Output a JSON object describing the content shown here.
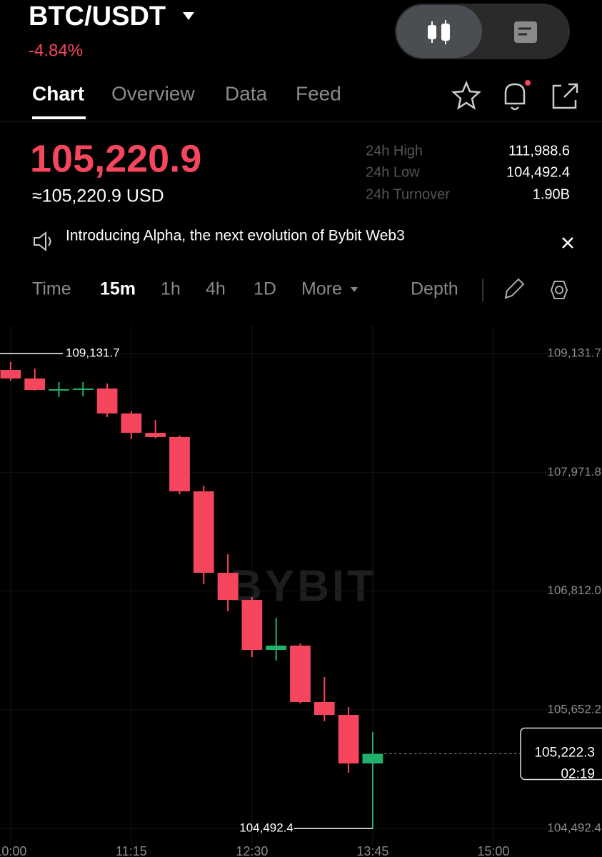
{
  "header": {
    "pair": "BTC/USDT",
    "change": "-4.84%"
  },
  "tabs": [
    "Chart",
    "Overview",
    "Data",
    "Feed"
  ],
  "ticker": {
    "price": "105,220.9",
    "usd": "≈105,220.9 USD"
  },
  "stats": [
    {
      "label": "24h High",
      "value": "111,988.6"
    },
    {
      "label": "24h Low",
      "value": "104,492.4"
    },
    {
      "label": "24h Turnover",
      "value": "1.90B"
    }
  ],
  "banner": "Introducing Alpha, the next evolution of Bybit Web3",
  "intervals": [
    "Time",
    "15m",
    "1h",
    "4h",
    "1D",
    "More",
    "Depth"
  ],
  "chart_data": {
    "type": "candlestick",
    "watermark": "BYBIT",
    "open": [
      108971,
      108888,
      108776,
      108783,
      108790,
      108546,
      108357,
      108316,
      107786,
      106990,
      106725,
      106237,
      106279,
      105728,
      105602,
      105128
    ],
    "high": [
      109048,
      108985,
      108853,
      108853,
      108839,
      108567,
      108483,
      108330,
      107841,
      107172,
      106753,
      106551,
      106300,
      105972,
      105679,
      105435
    ],
    "low": [
      108867,
      108769,
      108706,
      108713,
      108511,
      108295,
      108302,
      107758,
      106879,
      106614,
      106167,
      106132,
      105714,
      105540,
      105037,
      104492.4
    ],
    "close": [
      108888,
      108776,
      108783,
      108790,
      108546,
      108357,
      108316,
      107786,
      106990,
      106725,
      106237,
      106279,
      105728,
      105602,
      105128,
      105222.3
    ],
    "up_color": "#20b26c",
    "down_color": "#f6465d",
    "ylim": [
      104319,
      109410.7
    ],
    "yticks": [
      {
        "value": 104492.4,
        "label": "104,492.4"
      },
      {
        "value": 105652.2,
        "label": "105,652.2"
      },
      {
        "value": 106812.0,
        "label": "106,812.0"
      },
      {
        "value": 107971.8,
        "label": "107,971.8"
      },
      {
        "value": 109131.7,
        "label": "109,131.7"
      }
    ],
    "xlim": [
      -0.44,
      24.5
    ],
    "xticks": [
      {
        "value": 0,
        "label": "10:00"
      },
      {
        "value": 5,
        "label": "11:15"
      },
      {
        "value": 10,
        "label": "12:30"
      },
      {
        "value": 15,
        "label": "13:45"
      },
      {
        "value": 20,
        "label": "15:00"
      }
    ],
    "grid": true,
    "annotations": [
      {
        "value": 109131.7,
        "label": "109,131.7"
      },
      {
        "value": 104492.4,
        "label": "104,492.4"
      }
    ],
    "last_price": {
      "label": "105,222.3",
      "countdown": "02:19"
    }
  }
}
